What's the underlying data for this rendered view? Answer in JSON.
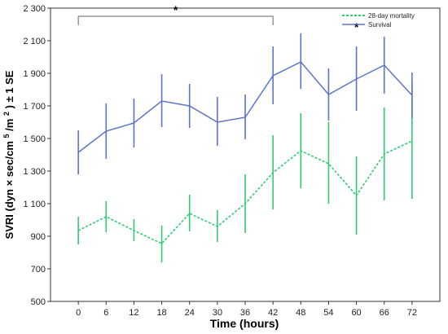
{
  "chart_data": {
    "type": "line",
    "xlabel": "Time (hours)",
    "ylabel_parts": [
      "SVRI (dyn",
      "×",
      "sec/cm",
      "5",
      "/m",
      "2",
      ") ± 1 SE"
    ],
    "x": [
      0,
      6,
      12,
      18,
      24,
      30,
      36,
      42,
      48,
      54,
      60,
      66,
      72
    ],
    "xlim": [
      -6,
      78
    ],
    "ylim": [
      500,
      2300
    ],
    "yticks": [
      500,
      700,
      900,
      1100,
      1300,
      1500,
      1700,
      1900,
      2100,
      2300
    ],
    "ytick_labels": [
      "500",
      "700",
      "900",
      "1 100",
      "1 300",
      "1 500",
      "1 700",
      "1 900",
      "2 100",
      "2 300"
    ],
    "xtick_labels": [
      "0",
      "6",
      "12",
      "18",
      "24",
      "30",
      "36",
      "42",
      "48",
      "54",
      "60",
      "66",
      "72"
    ],
    "grid": false,
    "legend_position": "top-right",
    "series": [
      {
        "name": "28-day mortality",
        "color": "#2ecc71",
        "dashed": true,
        "values": [
          935,
          1020,
          935,
          855,
          1040,
          960,
          1100,
          1290,
          1425,
          1345,
          1150,
          1405,
          1485
        ],
        "lower": [
          850,
          925,
          870,
          740,
          930,
          865,
          920,
          1065,
          1195,
          1100,
          910,
          1120,
          1130
        ],
        "upper": [
          1020,
          1115,
          1005,
          965,
          1155,
          1060,
          1280,
          1520,
          1655,
          1600,
          1390,
          1690,
          1845
        ]
      },
      {
        "name": "Survival",
        "color": "#5b74c4",
        "dashed": false,
        "values": [
          1415,
          1545,
          1595,
          1730,
          1700,
          1600,
          1630,
          1885,
          1970,
          1770,
          1865,
          1950,
          1765
        ],
        "lower": [
          1280,
          1375,
          1445,
          1570,
          1565,
          1455,
          1495,
          1710,
          1805,
          1610,
          1670,
          1775,
          1625
        ],
        "upper": [
          1550,
          1715,
          1745,
          1895,
          1835,
          1755,
          1770,
          2065,
          2145,
          1930,
          2065,
          2125,
          1905
        ]
      }
    ],
    "annotations": [
      {
        "type": "bracket",
        "x_start": 0,
        "x_end": 42,
        "label": "*"
      },
      {
        "type": "star",
        "x": 60,
        "label": "*"
      }
    ]
  }
}
